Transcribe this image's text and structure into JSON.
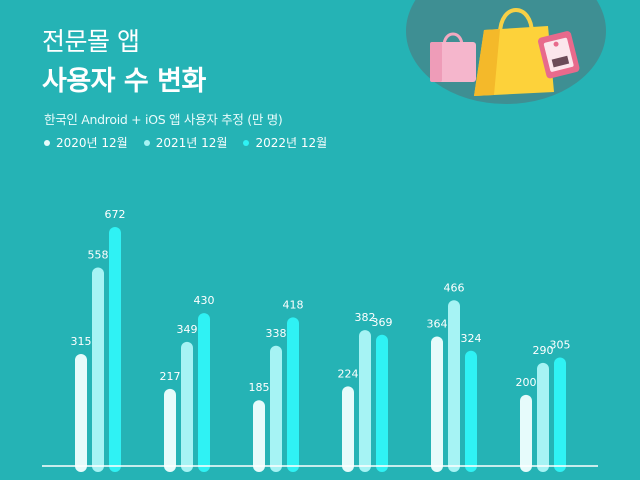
{
  "header": {
    "title_line1": "전문몰 앱",
    "title_line2": "사용자 수 변화",
    "subtitle": "한국인 Android + iOS 앱 사용자 추정 (만 명)"
  },
  "colors": {
    "background": "#25b3b5",
    "series": [
      "#e6fbfb",
      "#a6f3f4",
      "#2ff2f4"
    ],
    "baseline": "#ffffff"
  },
  "chart_data": {
    "type": "bar",
    "categories": [
      "",
      "",
      "",
      "",
      "",
      ""
    ],
    "series": [
      {
        "name": "2020년 12월",
        "values": [
          315,
          217,
          185,
          224,
          364,
          200
        ]
      },
      {
        "name": "2021년 12월",
        "values": [
          558,
          349,
          338,
          382,
          466,
          290
        ]
      },
      {
        "name": "2022년 12월",
        "values": [
          672,
          430,
          418,
          369,
          324,
          305
        ]
      }
    ],
    "title": "전문몰 앱 사용자 수 변화",
    "subtitle": "한국인 Android + iOS 앱 사용자 추정 (만 명)",
    "xlabel": "",
    "ylabel": "",
    "ylim": [
      0,
      700
    ],
    "grid": false,
    "legend": "top-left"
  }
}
